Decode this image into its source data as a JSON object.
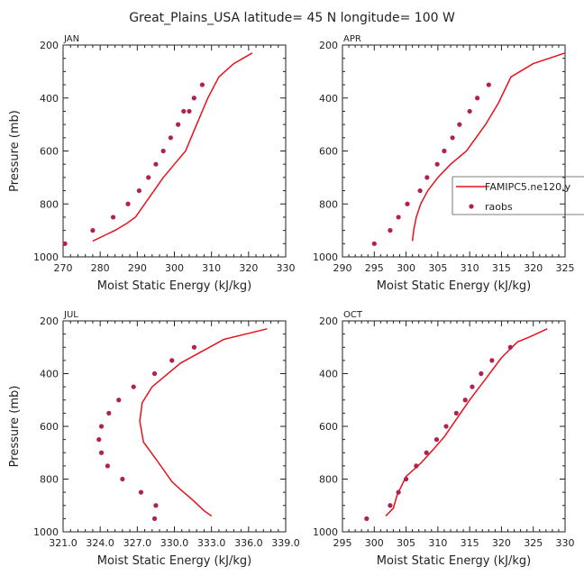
{
  "figure": {
    "title": "Great_Plains_USA  latitude= 45 N longitude= 100 W",
    "colors": {
      "model": "#e8101a",
      "obs": "#b2204f",
      "axis": "#222222"
    }
  },
  "legend": {
    "model_label": "FAMIPC5.ne120.y",
    "obs_label": "raobs"
  },
  "chart_data": [
    {
      "type": "line",
      "panel": "JAN",
      "title": "JAN",
      "xlabel": "Moist Static Energy (kJ/kg)",
      "ylabel": "Pressure (mb)",
      "xlim": [
        270,
        330
      ],
      "ylim": [
        1000,
        200
      ],
      "x_ticks": [
        "270",
        "280",
        "290",
        "300",
        "310",
        "320",
        "330"
      ],
      "y_ticks": [
        "200",
        "400",
        "600",
        "800",
        "1000"
      ],
      "series": [
        {
          "name": "FAMIPC5.ne120.y",
          "style": "line",
          "x": [
            278,
            281,
            284,
            287,
            289.5,
            292,
            294.5,
            297,
            300,
            303,
            306,
            309,
            312,
            316,
            321
          ],
          "y": [
            940,
            920,
            900,
            875,
            850,
            800,
            750,
            700,
            650,
            600,
            500,
            400,
            320,
            270,
            230
          ]
        },
        {
          "name": "raobs",
          "style": "markers",
          "x": [
            270.5,
            278,
            283.5,
            287.5,
            290.5,
            293,
            295,
            297,
            299,
            301,
            302.5,
            304,
            305.3,
            307.5
          ],
          "y": [
            950,
            900,
            850,
            800,
            750,
            700,
            650,
            600,
            550,
            500,
            450,
            450,
            400,
            350
          ]
        }
      ]
    },
    {
      "type": "line",
      "panel": "APR",
      "title": "APR",
      "xlabel": "Moist Static Energy (kJ/kg)",
      "ylabel": "",
      "xlim": [
        290,
        325
      ],
      "ylim": [
        1000,
        200
      ],
      "x_ticks": [
        "290",
        "295",
        "300",
        "305",
        "310",
        "315",
        "320",
        "325"
      ],
      "y_ticks": [
        "200",
        "400",
        "600",
        "800",
        "1000"
      ],
      "legend": "right",
      "series": [
        {
          "name": "FAMIPC5.ne120.y",
          "style": "line",
          "x": [
            301,
            301.2,
            301.6,
            302.3,
            303.4,
            305,
            307,
            309.5,
            312.5,
            314.5,
            316.5,
            320,
            325
          ],
          "y": [
            940,
            900,
            850,
            800,
            750,
            700,
            650,
            600,
            500,
            420,
            320,
            270,
            230
          ]
        },
        {
          "name": "raobs",
          "style": "markers",
          "x": [
            295,
            297.5,
            298.8,
            300.2,
            302.2,
            303.3,
            304.9,
            306,
            307.3,
            308.4,
            310,
            311.2,
            313
          ],
          "y": [
            950,
            900,
            850,
            800,
            750,
            700,
            650,
            600,
            550,
            500,
            450,
            400,
            350
          ]
        }
      ]
    },
    {
      "type": "line",
      "panel": "JUL",
      "title": "JUL",
      "xlabel": "Moist Static Energy (kJ/kg)",
      "ylabel": "Pressure (mb)",
      "xlim": [
        321,
        339
      ],
      "ylim": [
        1000,
        200
      ],
      "x_ticks": [
        "321.0",
        "324.0",
        "327.0",
        "330.0",
        "333.0",
        "336.0",
        "339.0"
      ],
      "y_ticks": [
        "200",
        "400",
        "600",
        "800",
        "1000"
      ],
      "series": [
        {
          "name": "FAMIPC5.ne120.y",
          "style": "line",
          "x": [
            333,
            332.4,
            331.5,
            330.5,
            329.8,
            328.6,
            327.5,
            327.2,
            327.4,
            328.2,
            330.5,
            334,
            337.5
          ],
          "y": [
            940,
            920,
            880,
            840,
            810,
            730,
            660,
            580,
            510,
            450,
            360,
            270,
            230
          ]
        },
        {
          "name": "raobs",
          "style": "markers",
          "x": [
            328.4,
            328.5,
            327.3,
            325.8,
            324.6,
            324.1,
            323.9,
            324.1,
            324.7,
            325.5,
            326.7,
            328.4,
            329.8,
            331.6
          ],
          "y": [
            950,
            900,
            850,
            800,
            750,
            700,
            650,
            600,
            550,
            500,
            450,
            400,
            350,
            300
          ]
        }
      ]
    },
    {
      "type": "line",
      "panel": "OCT",
      "title": "OCT",
      "xlabel": "Moist Static Energy (kJ/kg)",
      "ylabel": "",
      "xlim": [
        295,
        330
      ],
      "ylim": [
        1000,
        200
      ],
      "x_ticks": [
        "295",
        "300",
        "305",
        "310",
        "315",
        "320",
        "325",
        "330"
      ],
      "y_ticks": [
        "200",
        "400",
        "600",
        "800",
        "1000"
      ],
      "series": [
        {
          "name": "FAMIPC5.ne120.y",
          "style": "line",
          "x": [
            301.8,
            303,
            303.6,
            305,
            307.3,
            309.2,
            311,
            313,
            315,
            317.5,
            320,
            322.5,
            324.5,
            327.2
          ],
          "y": [
            940,
            910,
            860,
            790,
            740,
            690,
            640,
            570,
            500,
            420,
            340,
            280,
            260,
            230
          ]
        },
        {
          "name": "raobs",
          "style": "markers",
          "x": [
            298.8,
            302.5,
            303.8,
            305,
            306.6,
            308.2,
            309.8,
            311.3,
            312.9,
            314.3,
            315.4,
            316.8,
            318.5,
            321.4
          ],
          "y": [
            950,
            900,
            850,
            800,
            750,
            700,
            650,
            600,
            550,
            500,
            450,
            400,
            350,
            300
          ]
        }
      ]
    }
  ]
}
